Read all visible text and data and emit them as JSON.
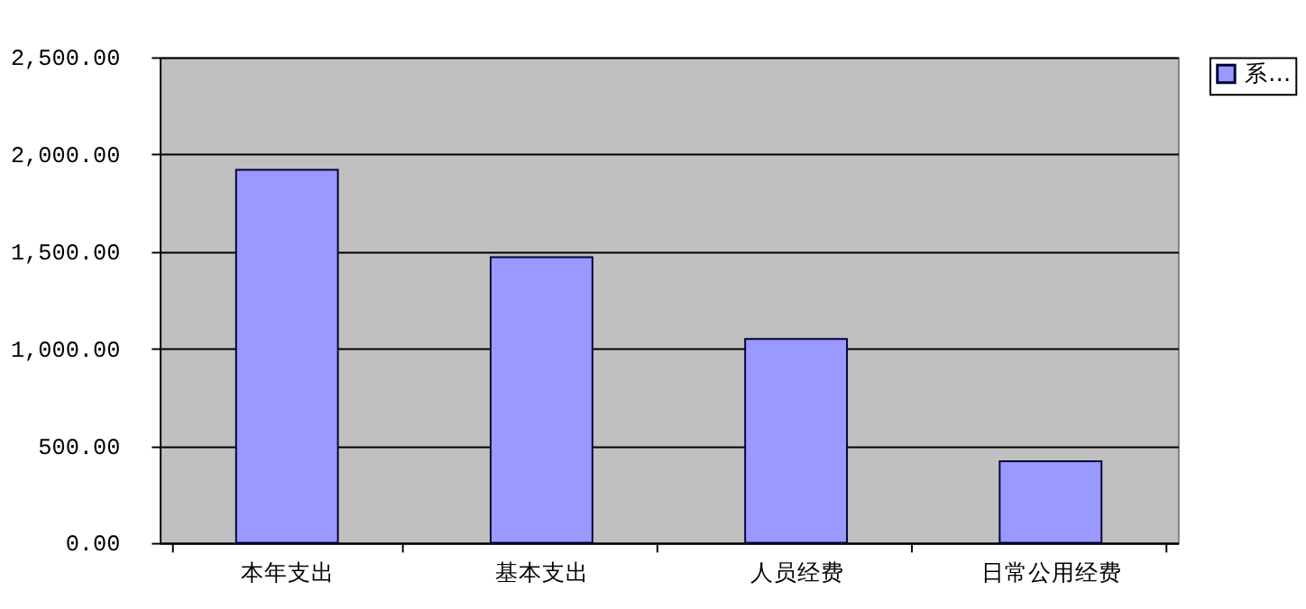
{
  "chart_data": {
    "type": "bar",
    "categories": [
      "本年支出",
      "基本支出",
      "人员经费",
      "日常公用经费"
    ],
    "series": [
      {
        "name": "系…",
        "color": "#9999ff",
        "values": [
          1920,
          1470,
          1050,
          420
        ]
      }
    ],
    "ylim": [
      0,
      2500
    ],
    "yticks": [
      {
        "value": 0,
        "label": "0.00"
      },
      {
        "value": 500,
        "label": "500.00"
      },
      {
        "value": 1000,
        "label": "1,000.00"
      },
      {
        "value": 1500,
        "label": "1,500.00"
      },
      {
        "value": 2000,
        "label": "2,000.00"
      },
      {
        "value": 2500,
        "label": "2,500.00"
      }
    ],
    "grid": "y",
    "legend": "right"
  }
}
